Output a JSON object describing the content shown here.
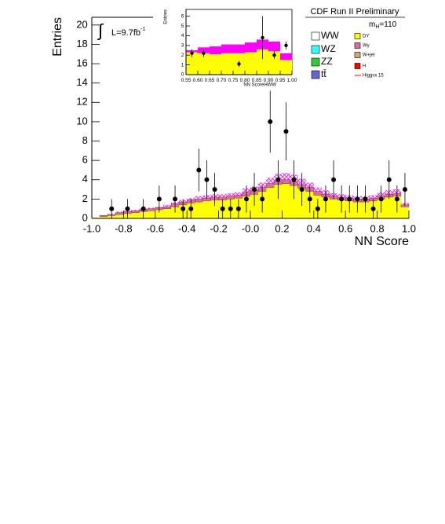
{
  "chart_data": [
    {
      "type": "histogram",
      "title": "CDF Run II Preliminary",
      "x_label": "NN Score",
      "y_label": "Entries",
      "annotations": {
        "integral": "∫",
        "lumi": "L=9.7fb",
        "lumi_exp": "-1",
        "mass": "m",
        "mass_sub": "H",
        "mass_value": "=110"
      },
      "bins": [
        -1.0,
        -0.95,
        -0.9,
        -0.85,
        -0.8,
        -0.75,
        -0.7,
        -0.65,
        -0.6,
        -0.55,
        -0.5,
        -0.45,
        -0.4,
        -0.35,
        -0.3,
        -0.25,
        -0.2,
        -0.15,
        -0.1,
        -0.05,
        0.0,
        0.05,
        0.1,
        0.15,
        0.2,
        0.25,
        0.3,
        0.35,
        0.4,
        0.45,
        0.5,
        0.55,
        0.6,
        0.65,
        0.7,
        0.75,
        0.8,
        0.85,
        0.9,
        0.95,
        1.0
      ],
      "series": [
        {
          "name": "DY",
          "color": "#ffff00",
          "values": [
            0.1,
            0.2,
            0.3,
            0.4,
            0.5,
            0.6,
            0.7,
            0.8,
            0.9,
            1.0,
            1.2,
            1.4,
            1.6,
            1.7,
            1.8,
            1.9,
            1.9,
            2.0,
            2.1,
            2.3,
            2.5,
            2.8,
            3.2,
            3.5,
            3.6,
            3.4,
            3.1,
            2.8,
            2.4,
            2.2,
            2.0,
            1.9,
            1.8,
            1.7,
            1.7,
            1.8,
            2.0,
            2.2,
            2.3,
            1.2
          ]
        },
        {
          "name": "Wγ",
          "color": "#d9709c",
          "values": [
            0,
            0.1,
            0.1,
            0.2,
            0.2,
            0.2,
            0.2,
            0.2,
            0.2,
            0.2,
            0.3,
            0.3,
            0.3,
            0.3,
            0.3,
            0.3,
            0.3,
            0.3,
            0.3,
            0.4,
            0.4,
            0.4,
            0.4,
            0.4,
            0.4,
            0.4,
            0.4,
            0.4,
            0.4,
            0.3,
            0.3,
            0.3,
            0.3,
            0.3,
            0.3,
            0.3,
            0.3,
            0.3,
            0.3,
            0.2
          ]
        },
        {
          "name": "W+jet",
          "color": "#d9a57a",
          "values": [
            0,
            0,
            0,
            0,
            0,
            0,
            0,
            0,
            0,
            0,
            0,
            0,
            0,
            0,
            0,
            0,
            0,
            0,
            0,
            0,
            0,
            0,
            0,
            0,
            0,
            0,
            0,
            0,
            0,
            0,
            0,
            0,
            0,
            0,
            0,
            0,
            0,
            0,
            0,
            0
          ]
        },
        {
          "name": "WW",
          "color": "#ffffff",
          "values": [
            0,
            0,
            0,
            0,
            0,
            0,
            0,
            0,
            0,
            0,
            0,
            0,
            0,
            0,
            0,
            0,
            0,
            0,
            0,
            0,
            0,
            0,
            0,
            0,
            0,
            0,
            0,
            0,
            0,
            0,
            0,
            0,
            0,
            0,
            0,
            0,
            0,
            0,
            0,
            0
          ]
        },
        {
          "name": "WZ",
          "color": "#33ffff",
          "values": [
            0,
            0,
            0,
            0,
            0,
            0,
            0,
            0,
            0,
            0,
            0,
            0,
            0,
            0,
            0,
            0,
            0,
            0,
            0,
            0,
            0,
            0,
            0,
            0,
            0,
            0,
            0,
            0,
            0,
            0,
            0,
            0,
            0,
            0,
            0,
            0,
            0,
            0,
            0,
            0
          ]
        },
        {
          "name": "ZZ",
          "color": "#33cc33",
          "values": [
            0,
            0,
            0,
            0,
            0,
            0,
            0,
            0,
            0,
            0,
            0,
            0,
            0,
            0,
            0,
            0,
            0,
            0,
            0,
            0,
            0,
            0,
            0,
            0,
            0,
            0,
            0,
            0,
            0,
            0,
            0,
            0,
            0,
            0,
            0,
            0,
            0,
            0,
            0,
            0
          ]
        },
        {
          "name": "tt̄",
          "color": "#6666cc",
          "values": [
            0,
            0,
            0,
            0,
            0,
            0,
            0,
            0,
            0,
            0,
            0,
            0,
            0,
            0,
            0,
            0,
            0,
            0,
            0,
            0,
            0,
            0,
            0,
            0,
            0,
            0,
            0,
            0,
            0,
            0,
            0,
            0,
            0,
            0,
            0,
            0,
            0,
            0,
            0,
            0
          ]
        },
        {
          "name": "H",
          "color": "#ff0000",
          "values": [
            0,
            0,
            0,
            0,
            0,
            0,
            0,
            0,
            0,
            0,
            0,
            0,
            0,
            0,
            0,
            0,
            0,
            0,
            0,
            0,
            0,
            0,
            0,
            0,
            0,
            0,
            0,
            0,
            0,
            0,
            0,
            0,
            0,
            0,
            0,
            0,
            0,
            0,
            0,
            0
          ]
        },
        {
          "name": "Higgsx 15",
          "color": "#ff0000",
          "hatch_color": "#ff00ff",
          "values": [
            0,
            0,
            0.1,
            0.1,
            0.1,
            0.1,
            0.1,
            0.1,
            0.1,
            0.2,
            0.2,
            0.2,
            0.2,
            0.3,
            0.3,
            0.3,
            0.3,
            0.3,
            0.3,
            0.4,
            0.4,
            0.5,
            0.6,
            0.7,
            0.7,
            0.7,
            0.6,
            0.5,
            0.4,
            0.4,
            0.3,
            0.3,
            0.3,
            0.3,
            0.3,
            0.3,
            0.4,
            0.4,
            0.4,
            0.2
          ]
        }
      ],
      "points": {
        "color": "#000000",
        "values": [
          null,
          null,
          1,
          null,
          1,
          null,
          1,
          null,
          2,
          null,
          2,
          1,
          1,
          5,
          4,
          3,
          1,
          1,
          1,
          2,
          3,
          2,
          10,
          4,
          9,
          4,
          3,
          2,
          1,
          2,
          4,
          2,
          2,
          2,
          2,
          1,
          2,
          4,
          2,
          3
        ],
        "errors": [
          null,
          null,
          1,
          null,
          1,
          null,
          1,
          null,
          1.4,
          null,
          1.4,
          1,
          1,
          2.2,
          2,
          1.7,
          1,
          1,
          1,
          1.4,
          1.7,
          1.4,
          3.2,
          2,
          3,
          2,
          1.7,
          1.4,
          1,
          1.4,
          2,
          1.4,
          1.4,
          1.4,
          1.4,
          1,
          1.4,
          2,
          1.4,
          1.7
        ]
      },
      "xlim": [
        -1.0,
        1.0
      ],
      "ylim": [
        0,
        20.8
      ],
      "xticks": [
        {
          "value": -1.0,
          "label": "-1.0"
        },
        -0.8,
        -0.6,
        -0.4,
        -0.2,
        {
          "value": 0.0,
          "label": "-0.0"
        },
        0.2,
        0.4,
        0.6,
        0.8,
        {
          "value": 1.0,
          "label": "1.0"
        }
      ],
      "yticks": [
        0,
        2,
        4,
        6,
        8,
        10,
        12,
        14,
        16,
        18,
        20
      ]
    },
    {
      "type": "histogram",
      "x_label": "NN ScoreHWW",
      "y_label": "Entries",
      "bins": [
        0.55,
        0.6,
        0.65,
        0.7,
        0.75,
        0.8,
        0.85,
        0.9,
        0.95,
        1.0
      ],
      "series": [
        {
          "color": "#ffff00",
          "values": [
            2.3,
            2.2,
            2.1,
            2.2,
            2.2,
            2.3,
            2.6,
            2.4,
            1.5
          ]
        },
        {
          "color": "#ff00ff",
          "values": [
            0.2,
            0.6,
            0.8,
            0.9,
            0.9,
            1.0,
            1.0,
            1.0,
            0.7
          ]
        }
      ],
      "points": {
        "color": "#000000",
        "values": [
          2.2,
          2.2,
          null,
          null,
          1.1,
          null,
          3.8,
          2.0,
          3.0
        ],
        "errors": [
          0.4,
          0.4,
          null,
          null,
          0.3,
          null,
          2.2,
          0.4,
          0.4
        ]
      },
      "xlim": [
        0.55,
        1.0
      ],
      "ylim": [
        0,
        6.7
      ],
      "xticks": [
        0.55,
        {
          "value": 0.6,
          "label": "0.60"
        },
        0.65,
        {
          "value": 0.7,
          "label": "0.70"
        },
        0.75,
        {
          "value": 0.8,
          "label": "0.80"
        },
        0.85,
        {
          "value": 0.9,
          "label": "0.90"
        },
        0.95,
        {
          "value": 1.0,
          "label": "1.00"
        }
      ],
      "yticks": [
        0,
        1,
        2,
        3,
        4,
        5,
        6
      ]
    }
  ]
}
